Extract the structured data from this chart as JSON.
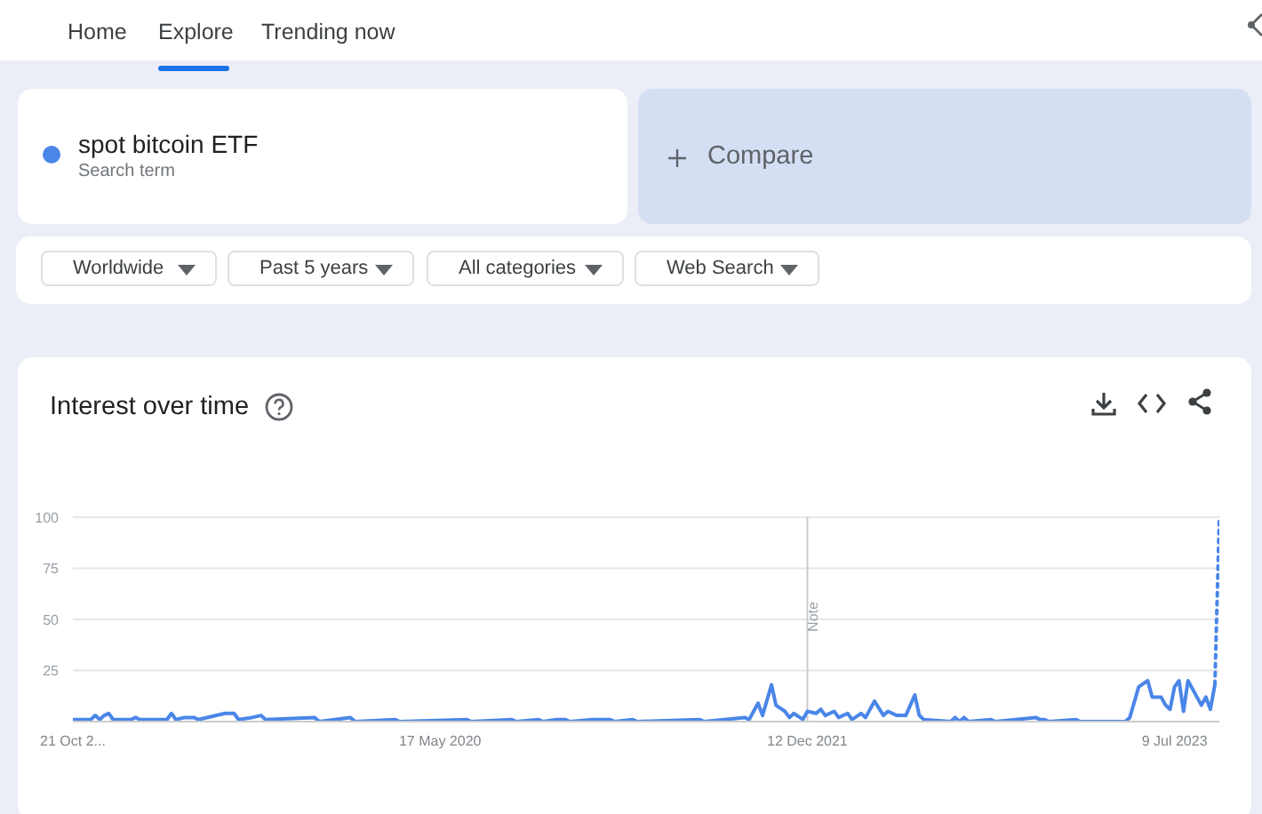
{
  "chart_data": {
    "type": "line",
    "title": "Interest over time",
    "annotations": [
      "Home",
      "Explore",
      "Trending now",
      "Search term",
      "Compare",
      "Worldwide",
      "Past 5 years",
      "All categories",
      "Web Search"
    ],
    "legend": "top left",
    "series": [
      {
        "name": "spot bitcoin ETF",
        "color": "#4a86e8",
        "x": [
          "2018-10-21",
          "2018-11-18",
          "2018-11-25",
          "2018-12-02",
          "2018-12-09",
          "2018-12-16",
          "2018-12-23",
          "2019-01-20",
          "2019-01-27",
          "2019-02-03",
          "2019-03-17",
          "2019-03-24",
          "2019-03-31",
          "2019-04-14",
          "2019-04-28",
          "2019-05-05",
          "2019-06-16",
          "2019-06-23",
          "2019-06-30",
          "2019-07-07",
          "2019-07-28",
          "2019-08-11",
          "2019-08-18",
          "2019-11-03",
          "2019-11-10",
          "2019-12-29",
          "2020-01-05",
          "2020-03-08",
          "2020-03-15",
          "2020-06-28",
          "2020-07-05",
          "2020-09-06",
          "2020-09-13",
          "2020-10-18",
          "2020-10-25",
          "2020-11-15",
          "2020-11-29",
          "2020-12-06",
          "2021-01-10",
          "2021-01-24",
          "2021-02-07",
          "2021-02-14",
          "2021-03-14",
          "2021-03-21",
          "2021-06-27",
          "2021-07-04",
          "2021-09-05",
          "2021-09-12",
          "2021-09-26",
          "2021-10-03",
          "2021-10-17",
          "2021-10-24",
          "2021-11-07",
          "2021-11-14",
          "2021-11-21",
          "2021-12-05",
          "2021-12-12",
          "2021-12-26",
          "2022-01-02",
          "2022-01-09",
          "2022-01-23",
          "2022-01-30",
          "2022-02-13",
          "2022-02-20",
          "2022-03-06",
          "2022-03-13",
          "2022-03-27",
          "2022-04-10",
          "2022-04-17",
          "2022-05-01",
          "2022-05-15",
          "2022-05-29",
          "2022-06-05",
          "2022-06-12",
          "2022-07-24",
          "2022-07-31",
          "2022-08-07",
          "2022-08-14",
          "2022-08-21",
          "2022-09-25",
          "2022-10-02",
          "2022-12-04",
          "2022-12-11",
          "2022-12-18",
          "2022-12-25",
          "2023-02-05",
          "2023-02-12",
          "2023-04-23",
          "2023-04-30",
          "2023-05-14",
          "2023-05-28",
          "2023-06-04",
          "2023-06-18",
          "2023-06-25",
          "2023-07-02",
          "2023-07-09",
          "2023-07-16",
          "2023-07-23",
          "2023-07-30",
          "2023-08-13",
          "2023-08-20",
          "2023-08-27",
          "2023-09-03",
          "2023-09-10"
        ],
        "values": [
          1,
          1,
          3,
          1,
          3,
          4,
          1,
          1,
          2,
          1,
          1,
          4,
          1,
          2,
          2,
          1,
          4,
          4,
          4,
          1,
          2,
          3,
          1,
          2,
          0,
          2,
          0,
          1,
          0,
          1,
          0,
          1,
          0,
          1,
          0,
          1,
          1,
          0,
          1,
          1,
          1,
          0,
          1,
          0,
          1,
          0,
          2,
          1,
          9,
          3,
          18,
          8,
          5,
          2,
          4,
          1,
          5,
          4,
          6,
          3,
          5,
          2,
          4,
          1,
          4,
          2,
          10,
          3,
          5,
          3,
          3,
          13,
          3,
          1,
          0,
          2,
          0,
          2,
          0,
          1,
          0,
          2,
          1,
          1,
          0,
          1,
          0,
          0,
          2,
          17,
          20,
          12,
          12,
          8,
          6,
          17,
          20,
          5,
          20,
          12,
          8,
          12,
          6,
          18
        ]
      },
      {
        "color": "#4a86e8",
        "line_style": "dotted",
        "x": [
          "2023-09-10",
          "2023-09-17"
        ],
        "values": [
          18,
          100
        ]
      }
    ],
    "xlim": [
      "2018-10-21",
      "2023-09-17"
    ],
    "xticks": [
      {
        "value": "2018-10-21",
        "label": "21 Oct 2..."
      },
      {
        "value": "2020-05-17",
        "label": "17 May 2020"
      },
      {
        "value": "2021-12-12",
        "label": "12 Dec 2021"
      },
      {
        "value": "2023-07-09",
        "label": "9 Jul 2023"
      }
    ],
    "ylim": [
      0,
      100
    ],
    "yticks": [
      25,
      50,
      75,
      100
    ],
    "grid": "y",
    "ref_lines": [
      {
        "axis": "x",
        "value": "2021-12-12",
        "label": "Note",
        "color": "#cccccc"
      }
    ]
  }
}
